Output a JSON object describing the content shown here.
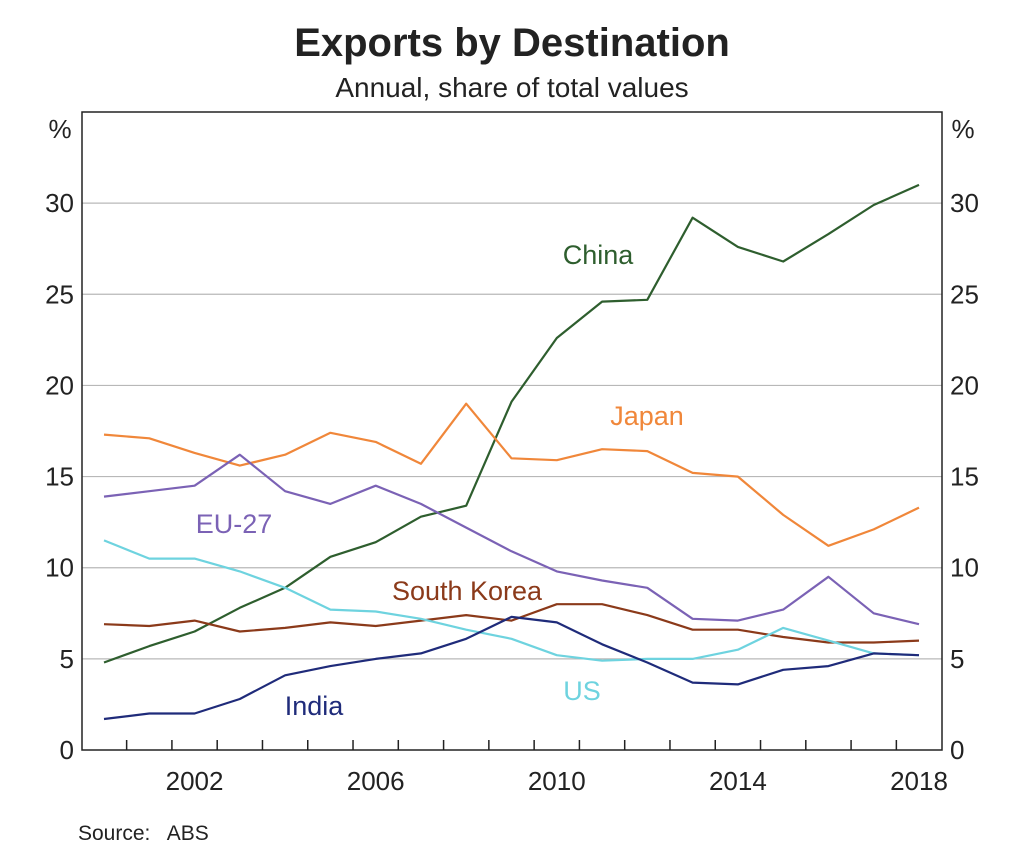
{
  "chart_data": {
    "type": "line",
    "title": "Exports by Destination",
    "subtitle": "Annual, share of total values",
    "ylabel_left": "%",
    "ylabel_right": "%",
    "ylim": [
      0,
      35
    ],
    "yticks": [
      0,
      5,
      10,
      15,
      20,
      25,
      30
    ],
    "x": [
      2000,
      2001,
      2002,
      2003,
      2004,
      2005,
      2006,
      2007,
      2008,
      2009,
      2010,
      2011,
      2012,
      2013,
      2014,
      2015,
      2016,
      2017,
      2018
    ],
    "xticks": [
      2002,
      2006,
      2010,
      2014,
      2018
    ],
    "grid": true,
    "source": "Source:   ABS",
    "series": [
      {
        "name": "China",
        "color": "#2e5e2e",
        "values": [
          4.8,
          5.7,
          6.5,
          7.8,
          8.9,
          10.6,
          11.4,
          12.8,
          13.4,
          19.1,
          22.6,
          24.6,
          24.7,
          29.2,
          27.6,
          26.8,
          28.3,
          29.9,
          31.0
        ]
      },
      {
        "name": "Japan",
        "color": "#f0873a",
        "values": [
          17.3,
          17.1,
          16.3,
          15.6,
          16.2,
          17.4,
          16.9,
          15.7,
          19.0,
          16.0,
          15.9,
          16.5,
          16.4,
          15.2,
          15.0,
          12.9,
          11.2,
          12.1,
          13.3
        ]
      },
      {
        "name": "EU-27",
        "color": "#7b62b5",
        "values": [
          13.9,
          14.2,
          14.5,
          16.2,
          14.2,
          13.5,
          14.5,
          13.5,
          12.2,
          10.9,
          9.8,
          9.3,
          8.9,
          7.2,
          7.1,
          7.7,
          9.5,
          7.5,
          6.9
        ]
      },
      {
        "name": "South Korea",
        "color": "#8b3a1a",
        "values": [
          6.9,
          6.8,
          7.1,
          6.5,
          6.7,
          7.0,
          6.8,
          7.1,
          7.4,
          7.1,
          8.0,
          8.0,
          7.4,
          6.6,
          6.6,
          6.2,
          5.9,
          5.9,
          6.0
        ]
      },
      {
        "name": "US",
        "color": "#6ed3df",
        "values": [
          11.5,
          10.5,
          10.5,
          9.8,
          8.9,
          7.7,
          7.6,
          7.2,
          6.6,
          6.1,
          5.2,
          4.9,
          5.0,
          5.0,
          5.5,
          6.7,
          6.0,
          5.3,
          5.2
        ]
      },
      {
        "name": "India",
        "color": "#1f2b7a",
        "values": [
          1.7,
          2.0,
          2.0,
          2.8,
          4.1,
          4.6,
          5.0,
          5.3,
          6.1,
          7.3,
          7.0,
          5.8,
          4.8,
          3.7,
          3.6,
          4.4,
          4.6,
          5.3,
          5.2
        ]
      }
    ]
  }
}
